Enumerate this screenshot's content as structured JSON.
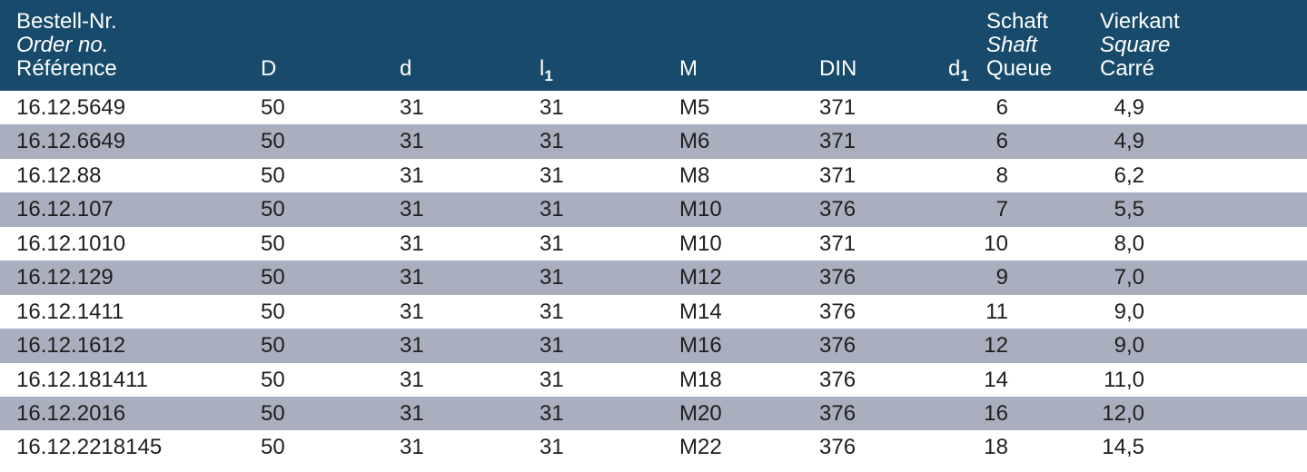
{
  "header": {
    "ref": {
      "de": "Bestell-Nr.",
      "en": "Order no.",
      "fr": "Référence"
    },
    "D": "D",
    "d": "d",
    "l1": {
      "base": "l",
      "sub": "1"
    },
    "M": "M",
    "DIN": "DIN",
    "d1": {
      "base": "d",
      "sub": "1"
    },
    "shaft": {
      "de": "Schaft",
      "en": "Shaft",
      "fr": "Queue"
    },
    "square": {
      "de": "Vierkant",
      "en": "Square",
      "fr": "Carré"
    }
  },
  "rows": [
    {
      "ref": "16.12.5649",
      "D": "50",
      "d": "31",
      "l1": "31",
      "M": "M5",
      "DIN": "371",
      "shaft": "6",
      "square": "4,9"
    },
    {
      "ref": "16.12.6649",
      "D": "50",
      "d": "31",
      "l1": "31",
      "M": "M6",
      "DIN": "371",
      "shaft": "6",
      "square": "4,9"
    },
    {
      "ref": "16.12.88",
      "D": "50",
      "d": "31",
      "l1": "31",
      "M": "M8",
      "DIN": "371",
      "shaft": "8",
      "square": "6,2"
    },
    {
      "ref": "16.12.107",
      "D": "50",
      "d": "31",
      "l1": "31",
      "M": "M10",
      "DIN": "376",
      "shaft": "7",
      "square": "5,5"
    },
    {
      "ref": "16.12.1010",
      "D": "50",
      "d": "31",
      "l1": "31",
      "M": "M10",
      "DIN": "371",
      "shaft": "10",
      "square": "8,0"
    },
    {
      "ref": "16.12.129",
      "D": "50",
      "d": "31",
      "l1": "31",
      "M": "M12",
      "DIN": "376",
      "shaft": "9",
      "square": "7,0"
    },
    {
      "ref": "16.12.1411",
      "D": "50",
      "d": "31",
      "l1": "31",
      "M": "M14",
      "DIN": "376",
      "shaft": "11",
      "square": "9,0"
    },
    {
      "ref": "16.12.1612",
      "D": "50",
      "d": "31",
      "l1": "31",
      "M": "M16",
      "DIN": "376",
      "shaft": "12",
      "square": "9,0"
    },
    {
      "ref": "16.12.181411",
      "D": "50",
      "d": "31",
      "l1": "31",
      "M": "M18",
      "DIN": "376",
      "shaft": "14",
      "square": "11,0"
    },
    {
      "ref": "16.12.2016",
      "D": "50",
      "d": "31",
      "l1": "31",
      "M": "M20",
      "DIN": "376",
      "shaft": "16",
      "square": "12,0"
    },
    {
      "ref": "16.12.2218145",
      "D": "50",
      "d": "31",
      "l1": "31",
      "M": "M22",
      "DIN": "376",
      "shaft": "18",
      "square": "14,5"
    }
  ],
  "colors": {
    "header_bg": "#174a6b",
    "alt_row_bg": "#a9afbf"
  }
}
